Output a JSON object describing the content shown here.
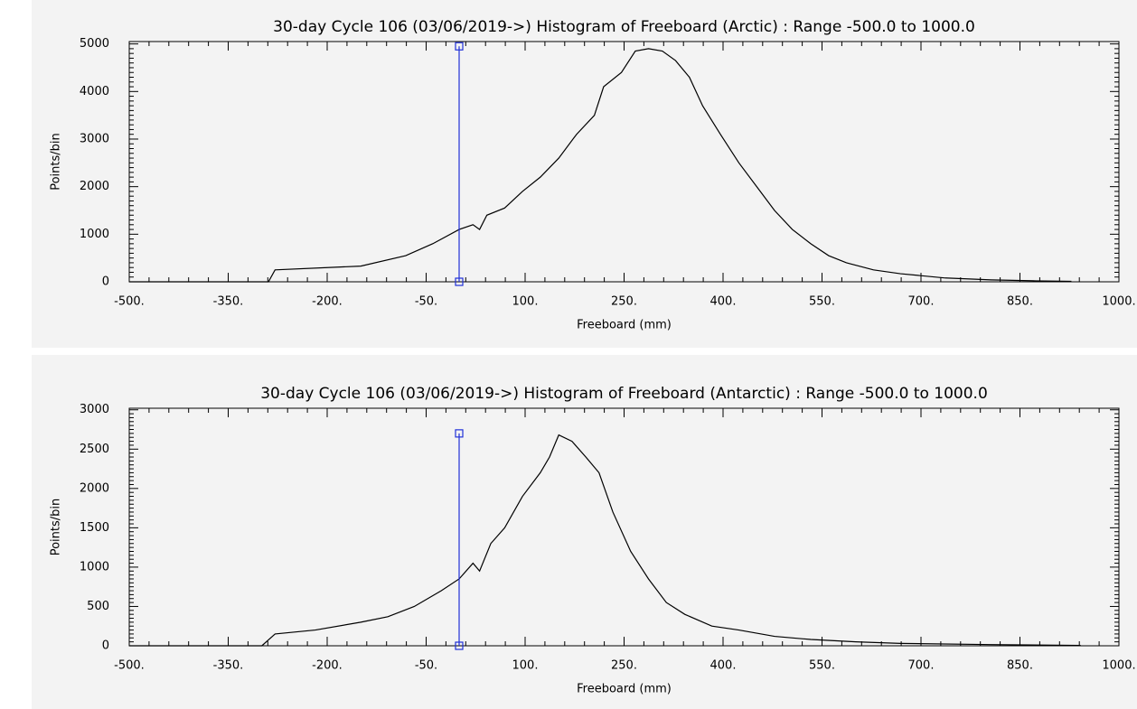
{
  "chart_data": [
    {
      "type": "line",
      "title": "30-day Cycle 106 (03/06/2019->) Histogram of Freeboard (Arctic) :  Range -500.0 to 1000.0",
      "xlabel": "Freeboard (mm)",
      "ylabel": "Points/bin",
      "xlim": [
        -500,
        1000
      ],
      "ylim": [
        0,
        5050
      ],
      "xticks": [
        {
          "value": -500,
          "label": "-500."
        },
        {
          "value": -350,
          "label": "-350."
        },
        {
          "value": -200,
          "label": "-200."
        },
        {
          "value": -50,
          "label": "-50."
        },
        {
          "value": 100,
          "label": "100."
        },
        {
          "value": 250,
          "label": "250."
        },
        {
          "value": 400,
          "label": "400."
        },
        {
          "value": 550,
          "label": "550."
        },
        {
          "value": 700,
          "label": "700."
        },
        {
          "value": 850,
          "label": "850."
        },
        {
          "value": 1000,
          "label": "1000."
        }
      ],
      "yticks": [
        0,
        1000,
        2000,
        3000,
        4000,
        5000
      ],
      "color": "#000000",
      "x": [
        -500,
        -289,
        -279,
        -149,
        -81,
        -40,
        0,
        21,
        31,
        42,
        69,
        96,
        123,
        151,
        178,
        205,
        219,
        246,
        267,
        287,
        308,
        328,
        349,
        369,
        396,
        424,
        451,
        478,
        505,
        533,
        560,
        587,
        628,
        669,
        737,
        806,
        874,
        928
      ],
      "values": [
        0,
        0,
        250,
        330,
        550,
        800,
        1100,
        1200,
        1100,
        1400,
        1550,
        1900,
        2200,
        2600,
        3100,
        3500,
        4100,
        4400,
        4850,
        4900,
        4850,
        4650,
        4300,
        3700,
        3100,
        2500,
        2000,
        1500,
        1100,
        800,
        550,
        400,
        250,
        170,
        80,
        40,
        20,
        10
      ],
      "cursor": {
        "x": 0,
        "y": [
          0,
          4950
        ],
        "color": "#2030d8"
      }
    },
    {
      "type": "line",
      "title": "30-day Cycle 106 (03/06/2019->) Histogram of Freeboard (Antarctic) :  Range -500.0 to 1000.0",
      "xlabel": "Freeboard (mm)",
      "ylabel": "Points/bin",
      "xlim": [
        -500,
        1000
      ],
      "ylim": [
        0,
        3020
      ],
      "xticks": [
        {
          "value": -500,
          "label": "-500."
        },
        {
          "value": -350,
          "label": "-350."
        },
        {
          "value": -200,
          "label": "-200."
        },
        {
          "value": -50,
          "label": "-50."
        },
        {
          "value": 100,
          "label": "100."
        },
        {
          "value": 250,
          "label": "250."
        },
        {
          "value": 400,
          "label": "400."
        },
        {
          "value": 550,
          "label": "550."
        },
        {
          "value": 700,
          "label": "700."
        },
        {
          "value": 850,
          "label": "850."
        },
        {
          "value": 1000,
          "label": "1000."
        }
      ],
      "yticks": [
        0,
        500,
        1000,
        1500,
        2000,
        2500,
        3000
      ],
      "color": "#000000",
      "x": [
        -500,
        -299,
        -279,
        -218,
        -149,
        -108,
        -68,
        -27,
        0,
        21,
        31,
        48,
        69,
        96,
        123,
        137,
        151,
        171,
        192,
        212,
        233,
        260,
        287,
        314,
        342,
        383,
        424,
        478,
        533,
        601,
        669,
        806,
        942
      ],
      "values": [
        0,
        0,
        150,
        200,
        300,
        370,
        500,
        700,
        850,
        1050,
        950,
        1300,
        1500,
        1900,
        2200,
        2400,
        2680,
        2600,
        2400,
        2200,
        1700,
        1200,
        850,
        550,
        400,
        250,
        200,
        120,
        80,
        50,
        30,
        15,
        5
      ],
      "cursor": {
        "x": 0,
        "y": [
          0,
          2700
        ],
        "color": "#2030d8"
      }
    }
  ]
}
